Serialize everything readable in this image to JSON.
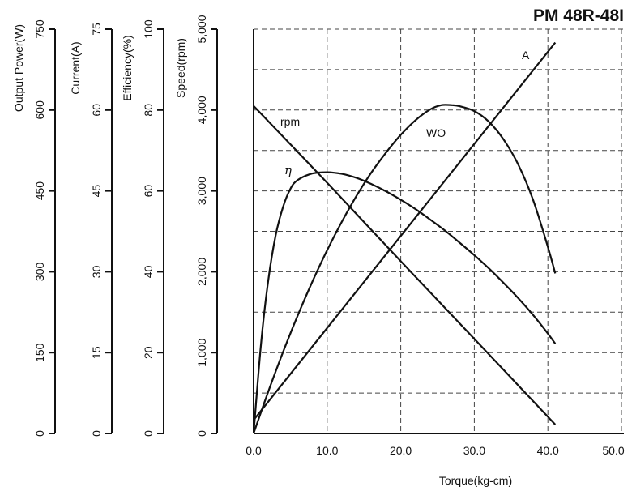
{
  "chart_data": {
    "type": "line",
    "title": "PM 48R-48I",
    "xlabel": "Torque(kg-cm)",
    "xlim": [
      0,
      50
    ],
    "x_ticks": [
      "0.0",
      "10.0",
      "20.0",
      "30.0",
      "40.0",
      "50.0"
    ],
    "grid": true,
    "y_axes": [
      {
        "key": "power",
        "label": "Output Power(W)",
        "ylim": [
          0,
          750
        ],
        "ticks": [
          "0",
          "150",
          "300",
          "450",
          "600",
          "750"
        ]
      },
      {
        "key": "current",
        "label": "Current(A)",
        "ylim": [
          0,
          75
        ],
        "ticks": [
          "0",
          "15",
          "30",
          "45",
          "60",
          "75"
        ]
      },
      {
        "key": "efficiency",
        "label": "Efficiency(%)",
        "ylim": [
          0,
          100
        ],
        "ticks": [
          "0",
          "20",
          "40",
          "60",
          "80",
          "100"
        ]
      },
      {
        "key": "speed",
        "label": "Speed(rpm)",
        "ylim": [
          0,
          5000
        ],
        "ticks": [
          "0",
          "1,000",
          "2,000",
          "3,000",
          "4,000",
          "5,000"
        ]
      }
    ],
    "series": [
      {
        "name": "rpm",
        "axis": "speed",
        "x": [
          0,
          10,
          20,
          30,
          41
        ],
        "y": [
          4050,
          3100,
          2130,
          1170,
          110
        ]
      },
      {
        "name": "η",
        "axis": "efficiency",
        "x": [
          0,
          1,
          2,
          3,
          4,
          5,
          6,
          8,
          10,
          12,
          14,
          16,
          18,
          20,
          22,
          24,
          26,
          28,
          30,
          32,
          34,
          36,
          38,
          40,
          41
        ],
        "y": [
          0,
          22,
          38,
          49,
          56,
          60.5,
          62.7,
          64.3,
          64.6,
          64.2,
          63.2,
          61.7,
          59.9,
          57.8,
          55.5,
          52.9,
          50.2,
          47.2,
          44.1,
          40.8,
          37.2,
          33.4,
          29.3,
          24.7,
          22.2
        ]
      },
      {
        "name": "WO",
        "axis": "power",
        "x": [
          0,
          2,
          4,
          6,
          8,
          10,
          12,
          14,
          16,
          18,
          20,
          22,
          24,
          25.5,
          27,
          28,
          30,
          32,
          34,
          36,
          38,
          40,
          41
        ],
        "y": [
          0,
          78,
          151,
          219,
          282,
          340,
          393,
          441,
          484,
          521,
          554,
          581,
          601,
          609,
          609,
          607,
          598,
          578,
          545,
          498,
          433,
          346,
          297
        ]
      },
      {
        "name": "A",
        "axis": "current",
        "x": [
          0,
          41
        ],
        "y": [
          2.5,
          72.5
        ]
      }
    ]
  }
}
